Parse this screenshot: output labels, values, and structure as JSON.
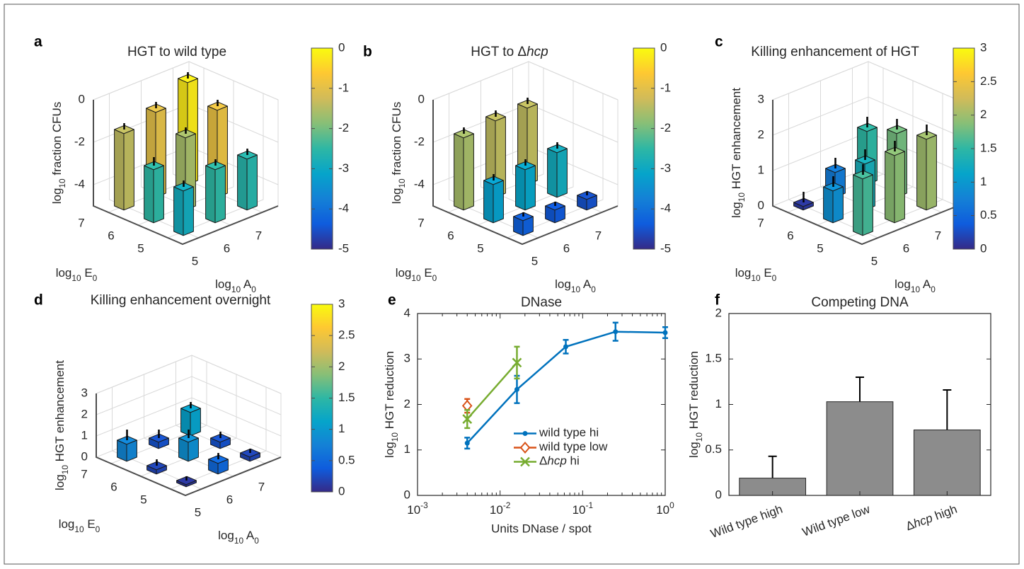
{
  "chart_data": [
    {
      "type": "bar3d",
      "letter": "a",
      "title": "HGT to wild type",
      "xlabel": [
        "log",
        "10",
        " A",
        "0"
      ],
      "ylabel": [
        "log",
        "10",
        " E",
        "0"
      ],
      "zlabel": [
        "log",
        "10",
        " fraction CFUs"
      ],
      "xlim": [
        4.5,
        7.5
      ],
      "xticks": [
        5,
        6,
        7
      ],
      "ylim": [
        4.5,
        7.5
      ],
      "yticks": [
        5,
        6,
        7
      ],
      "zlim": [
        -5,
        0
      ],
      "zticks": [
        -4,
        -2,
        0
      ],
      "clim": [
        -5,
        0
      ],
      "cticks": [
        -5,
        -4,
        -3,
        -2,
        -1,
        0
      ],
      "colormap": [
        "#352a87",
        "#0f5cdd",
        "#1481d6",
        "#06a4ca",
        "#2eb7a4",
        "#87bf77",
        "#d1bb59",
        "#fec832",
        "#f9fb0e"
      ],
      "x": [
        5,
        6,
        7,
        5,
        6,
        7,
        5,
        6,
        7
      ],
      "y": [
        7,
        7,
        7,
        6,
        6,
        6,
        5,
        5,
        5
      ],
      "values": [
        -1.4,
        -1.0,
        -0.2,
        -2.5,
        -1.6,
        -0.9,
        -2.9,
        -2.5,
        -2.6
      ],
      "errors": [
        0.3,
        0.3,
        0.3,
        0.4,
        0.3,
        0.3,
        0.3,
        0.3,
        0.3
      ]
    },
    {
      "type": "bar3d",
      "letter": "b",
      "title": [
        "HGT to Δ",
        "hcp"
      ],
      "xlabel": [
        "log",
        "10",
        " A",
        "0"
      ],
      "ylabel": [
        "log",
        "10",
        " E",
        "0"
      ],
      "zlabel": [
        "log",
        "10",
        " fraction CFUs"
      ],
      "xlim": [
        4.5,
        7.5
      ],
      "xticks": [
        5,
        6,
        7
      ],
      "ylim": [
        4.5,
        7.5
      ],
      "yticks": [
        5,
        6,
        7
      ],
      "zlim": [
        -5,
        0
      ],
      "zticks": [
        -4,
        -2,
        0
      ],
      "clim": [
        -5,
        0
      ],
      "cticks": [
        -5,
        -4,
        -3,
        -2,
        -1,
        0
      ],
      "colormap": [
        "#352a87",
        "#0f5cdd",
        "#1481d6",
        "#06a4ca",
        "#2eb7a4",
        "#87bf77",
        "#d1bb59",
        "#fec832",
        "#f9fb0e"
      ],
      "x": [
        5,
        6,
        7,
        5,
        6,
        7,
        5,
        6,
        7
      ],
      "y": [
        7,
        7,
        7,
        6,
        6,
        6,
        5,
        5,
        5
      ],
      "values": [
        -1.6,
        -1.4,
        -1.4,
        -3.2,
        -3.1,
        -2.9,
        -4.3,
        -4.4,
        -4.5
      ],
      "errors": [
        0.3,
        0.3,
        0.3,
        0.3,
        0.3,
        0.3,
        0.2,
        0.2,
        0.2
      ]
    },
    {
      "type": "bar3d",
      "letter": "c",
      "title": "Killing enhancement of HGT",
      "xlabel": [
        "log",
        "10",
        " A",
        "0"
      ],
      "ylabel": [
        "log",
        "10",
        " E",
        "0"
      ],
      "zlabel": [
        "log",
        "10",
        " HGT enhancement"
      ],
      "xlim": [
        4.5,
        7.5
      ],
      "xticks": [
        5,
        6,
        7
      ],
      "ylim": [
        4.5,
        7.5
      ],
      "yticks": [
        5,
        6,
        7
      ],
      "zlim": [
        0,
        3
      ],
      "zticks": [
        0,
        1,
        2,
        3
      ],
      "clim": [
        0,
        3
      ],
      "cticks": [
        0,
        0.5,
        1,
        1.5,
        2,
        2.5,
        3
      ],
      "colormap": [
        "#352a87",
        "#0f5cdd",
        "#1481d6",
        "#06a4ca",
        "#2eb7a4",
        "#87bf77",
        "#d1bb59",
        "#fec832",
        "#f9fb0e"
      ],
      "x": [
        5,
        6,
        7,
        5,
        6,
        7,
        5,
        6,
        7
      ],
      "y": [
        7,
        7,
        7,
        6,
        6,
        6,
        5,
        5,
        5
      ],
      "values": [
        0.1,
        0.7,
        1.5,
        0.9,
        1.3,
        1.8,
        1.6,
        1.9,
        2.0
      ],
      "errors": [
        0.3,
        0.3,
        0.3,
        0.3,
        0.3,
        0.3,
        0.3,
        0.3,
        0.3
      ]
    },
    {
      "type": "bar3d",
      "letter": "d",
      "title": "Killing enhancement overnight",
      "xlabel": [
        "log",
        "10",
        " A",
        "0"
      ],
      "ylabel": [
        "log",
        "10",
        " E",
        "0"
      ],
      "zlabel": [
        "log",
        "10",
        " HGT enhancement"
      ],
      "xlim": [
        4.5,
        7.5
      ],
      "xticks": [
        5,
        6,
        7
      ],
      "ylim": [
        4.5,
        7.5
      ],
      "yticks": [
        5,
        6,
        7
      ],
      "zlim": [
        0,
        3
      ],
      "zticks": [
        0,
        1,
        2,
        3
      ],
      "clim": [
        0,
        3
      ],
      "cticks": [
        0,
        0.5,
        1,
        1.5,
        2,
        2.5,
        3
      ],
      "colormap": [
        "#352a87",
        "#0f5cdd",
        "#1481d6",
        "#06a4ca",
        "#2eb7a4",
        "#87bf77",
        "#d1bb59",
        "#fec832",
        "#f9fb0e"
      ],
      "x": [
        5,
        6,
        7,
        5,
        6,
        7,
        5,
        6,
        7
      ],
      "y": [
        7,
        7,
        7,
        6,
        6,
        6,
        5,
        5,
        5
      ],
      "values": [
        0.8,
        0.3,
        1.1,
        0.2,
        0.9,
        0.3,
        0.1,
        0.5,
        0.2
      ],
      "errors": [
        0.5,
        0.4,
        0.3,
        0.3,
        0.4,
        0.3,
        0.2,
        0.3,
        0.2
      ]
    },
    {
      "type": "line",
      "letter": "e",
      "title": "DNase",
      "xlabel": "Units DNase / spot",
      "ylabel": [
        "log",
        "10",
        " HGT reduction"
      ],
      "xscale": "log",
      "xlim": [
        0.001,
        1
      ],
      "xticks": [
        {
          "value": 0.001,
          "label": "10",
          "sup": "-3"
        },
        {
          "value": 0.01,
          "label": "10",
          "sup": "-2"
        },
        {
          "value": 0.1,
          "label": "10",
          "sup": "-1"
        },
        {
          "value": 1,
          "label": "10",
          "sup": "0"
        }
      ],
      "ylim": [
        0,
        4
      ],
      "yticks": [
        0,
        1,
        2,
        3,
        4
      ],
      "legend": "center right",
      "series": [
        {
          "name": "wild type hi",
          "color": "#0072bd",
          "marker": "dot",
          "x": [
            0.004,
            0.016,
            0.0625,
            0.25,
            1
          ],
          "values": [
            1.15,
            2.33,
            3.27,
            3.6,
            3.58
          ],
          "errors": [
            0.12,
            0.3,
            0.15,
            0.2,
            0.12
          ]
        },
        {
          "name": "wild type low",
          "color": "#d95319",
          "marker": "diamond",
          "x": [
            0.004
          ],
          "values": [
            1.97
          ],
          "errors": [
            0.15
          ]
        },
        {
          "name": [
            "Δ",
            "hcp",
            " hi"
          ],
          "color": "#77ac30",
          "marker": "x",
          "x": [
            0.004,
            0.016
          ],
          "values": [
            1.68,
            2.92
          ],
          "errors": [
            0.2,
            0.35
          ]
        }
      ]
    },
    {
      "type": "bar",
      "letter": "f",
      "title": "Competing DNA",
      "ylabel": [
        "log",
        "10",
        " HGT reduction"
      ],
      "categories": [
        "Wild type high",
        "Wild type low",
        [
          "Δ",
          "hcp",
          " high"
        ]
      ],
      "values": [
        0.19,
        1.03,
        0.72
      ],
      "errors": [
        0.24,
        0.27,
        0.44
      ],
      "color": "#8c8c8c",
      "ylim": [
        0,
        2
      ],
      "yticks": [
        0,
        0.5,
        1,
        1.5,
        2
      ]
    }
  ]
}
